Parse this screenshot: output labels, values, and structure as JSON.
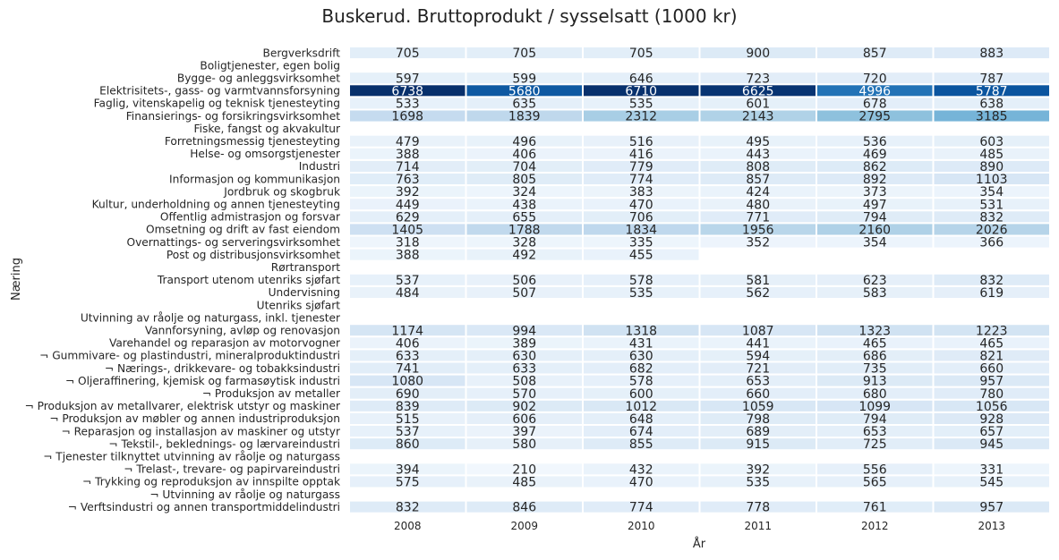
{
  "chart_data": {
    "type": "heatmap",
    "title": "Buskerud. Bruttoprodukt / sysselsatt (1000 kr)",
    "xlabel": "År",
    "ylabel": "Næring",
    "x": [
      "2008",
      "2009",
      "2010",
      "2011",
      "2012",
      "2013"
    ],
    "colormap": "Blues",
    "color_range": [
      0,
      6738
    ],
    "rows": [
      {
        "label": "Bergverksdrift",
        "values": [
          705,
          705,
          705,
          900,
          857,
          883
        ]
      },
      {
        "label": "Boligtjenester, egen bolig",
        "values": [
          null,
          null,
          null,
          null,
          null,
          null
        ]
      },
      {
        "label": "Bygge- og anleggsvirksomhet",
        "values": [
          597,
          599,
          646,
          723,
          720,
          787
        ]
      },
      {
        "label": "Elektrisitets-, gass- og varmtvannsforsyning",
        "values": [
          6738,
          5680,
          6710,
          6625,
          4996,
          5787
        ]
      },
      {
        "label": "Faglig, vitenskapelig og teknisk tjenesteyting",
        "values": [
          533,
          635,
          535,
          601,
          678,
          638
        ]
      },
      {
        "label": "Finansierings- og forsikringsvirksomhet",
        "values": [
          1698,
          1839,
          2312,
          2143,
          2795,
          3185
        ]
      },
      {
        "label": "Fiske, fangst og akvakultur",
        "values": [
          null,
          null,
          null,
          null,
          null,
          null
        ]
      },
      {
        "label": "Forretningsmessig tjenesteyting",
        "values": [
          479,
          496,
          516,
          495,
          536,
          603
        ]
      },
      {
        "label": "Helse- og omsorgstjenester",
        "values": [
          388,
          406,
          416,
          443,
          469,
          485
        ]
      },
      {
        "label": "Industri",
        "values": [
          714,
          704,
          779,
          808,
          862,
          890
        ]
      },
      {
        "label": "Informasjon og kommunikasjon",
        "values": [
          763,
          805,
          774,
          857,
          892,
          1103
        ]
      },
      {
        "label": "Jordbruk og skogbruk",
        "values": [
          392,
          324,
          383,
          424,
          373,
          354
        ]
      },
      {
        "label": "Kultur, underholdning og annen tjenesteyting",
        "values": [
          449,
          438,
          470,
          480,
          497,
          531
        ]
      },
      {
        "label": "Offentlig admistrasjon og forsvar",
        "values": [
          629,
          655,
          706,
          771,
          794,
          832
        ]
      },
      {
        "label": "Omsetning og drift av fast eiendom",
        "values": [
          1405,
          1788,
          1834,
          1956,
          2160,
          2026
        ]
      },
      {
        "label": "Overnattings- og serveringsvirksomhet",
        "values": [
          318,
          328,
          335,
          352,
          354,
          366
        ]
      },
      {
        "label": "Post og distribusjonsvirksomhet",
        "values": [
          388,
          492,
          455,
          null,
          null,
          null
        ]
      },
      {
        "label": "Rørtransport",
        "values": [
          null,
          null,
          null,
          null,
          null,
          null
        ]
      },
      {
        "label": "Transport utenom utenriks sjøfart",
        "values": [
          537,
          506,
          578,
          581,
          623,
          832
        ]
      },
      {
        "label": "Undervisning",
        "values": [
          484,
          507,
          535,
          562,
          583,
          619
        ]
      },
      {
        "label": "Utenriks sjøfart",
        "values": [
          null,
          null,
          null,
          null,
          null,
          null
        ]
      },
      {
        "label": "Utvinning av råolje og naturgass, inkl. tjenester",
        "values": [
          null,
          null,
          null,
          null,
          null,
          null
        ]
      },
      {
        "label": "Vannforsyning, avløp og renovasjon",
        "values": [
          1174,
          994,
          1318,
          1087,
          1323,
          1223
        ]
      },
      {
        "label": "Varehandel og reparasjon av motorvogner",
        "values": [
          406,
          389,
          431,
          441,
          465,
          465
        ]
      },
      {
        "label": "¬ Gummivare- og plastindustri, mineralproduktindustri",
        "values": [
          633,
          630,
          630,
          594,
          686,
          821
        ]
      },
      {
        "label": "¬ Nærings-, drikkevare- og tobakksindustri",
        "values": [
          741,
          633,
          682,
          721,
          735,
          660
        ]
      },
      {
        "label": "¬ Oljeraffinering, kjemisk og farmasøytisk industri",
        "values": [
          1080,
          508,
          578,
          653,
          913,
          957
        ]
      },
      {
        "label": "¬ Produksjon av metaller",
        "values": [
          690,
          570,
          600,
          660,
          680,
          780
        ]
      },
      {
        "label": "¬ Produksjon av metallvarer, elektrisk utstyr og maskiner",
        "values": [
          839,
          902,
          1012,
          1059,
          1099,
          1056
        ]
      },
      {
        "label": "¬ Produksjon av møbler og annen industriproduksjon",
        "values": [
          515,
          606,
          648,
          798,
          794,
          928
        ]
      },
      {
        "label": "¬ Reparasjon og installasjon av maskiner og utstyr",
        "values": [
          537,
          397,
          674,
          689,
          653,
          657
        ]
      },
      {
        "label": "¬ Tekstil-, beklednings- og lærvareindustri",
        "values": [
          860,
          580,
          855,
          915,
          725,
          945
        ]
      },
      {
        "label": "¬ Tjenester tilknyttet utvinning av råolje og naturgass",
        "values": [
          null,
          null,
          null,
          null,
          null,
          null
        ]
      },
      {
        "label": "¬ Trelast-, trevare- og papirvareindustri",
        "values": [
          394,
          210,
          432,
          392,
          556,
          331
        ]
      },
      {
        "label": "¬ Trykking og reproduksjon av innspilte opptak",
        "values": [
          575,
          485,
          470,
          535,
          565,
          545
        ]
      },
      {
        "label": "¬ Utvinning av råolje og naturgass",
        "values": [
          null,
          null,
          null,
          null,
          null,
          null
        ]
      },
      {
        "label": "¬ Verftsindustri og annen transportmiddelindustri",
        "values": [
          832,
          846,
          774,
          778,
          761,
          957
        ]
      }
    ]
  }
}
